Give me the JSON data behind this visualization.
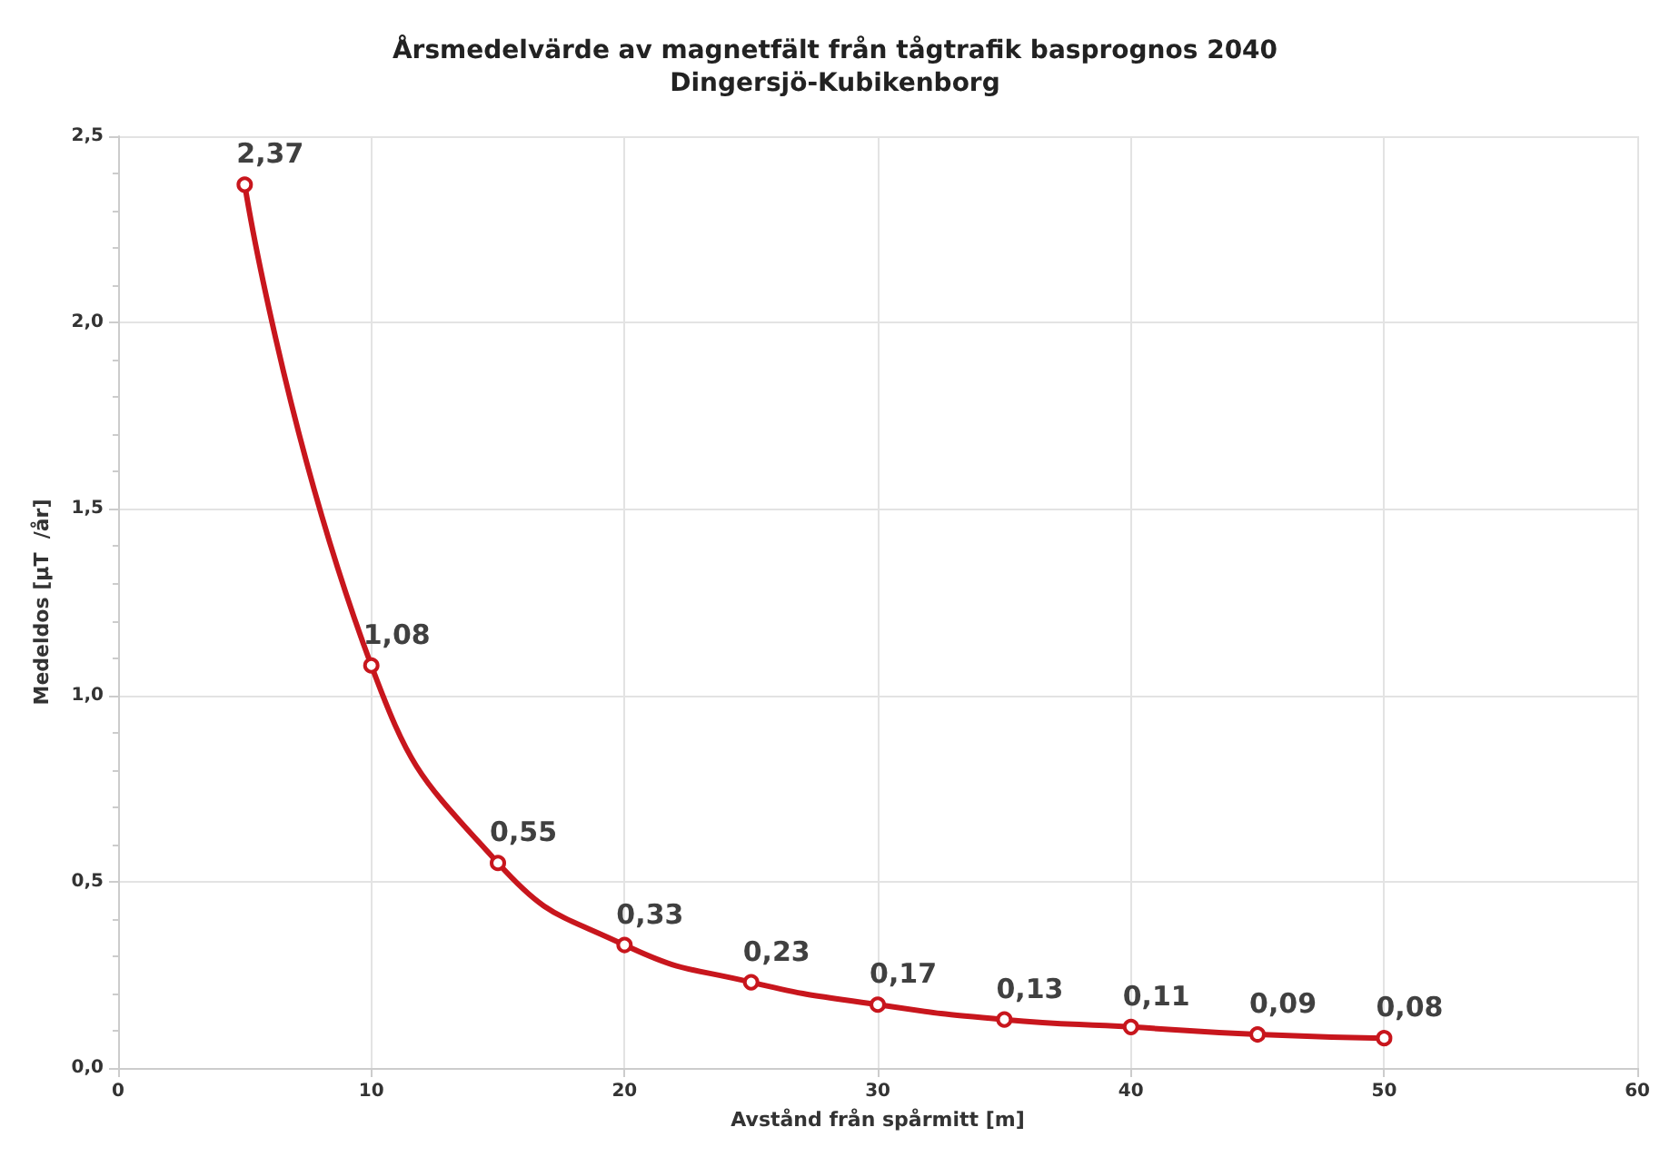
{
  "chart_data": {
    "type": "line",
    "title": "Årsmedelvärde av magnetfält från tågtrafik basprognos 2040",
    "subtitle": "Dingersjö-Kubikenborg",
    "xlabel": "Avstånd från spårmitt [m]",
    "ylabel": "Medeldos [µT  /år]",
    "x": [
      5,
      10,
      15,
      20,
      25,
      30,
      35,
      40,
      45,
      50
    ],
    "series": [
      {
        "color": "#c8161d",
        "values": [
          2.37,
          1.08,
          0.55,
          0.33,
          0.23,
          0.17,
          0.13,
          0.11,
          0.09,
          0.08
        ],
        "value_labels": [
          "2,37",
          "1,08",
          "0,55",
          "0,33",
          "0,23",
          "0,17",
          "0,13",
          "0,11",
          "0,09",
          "0,08"
        ]
      }
    ],
    "xlim": [
      0,
      60
    ],
    "xticks": [
      0,
      10,
      20,
      30,
      40,
      50,
      60
    ],
    "ylim": [
      0,
      2.5
    ],
    "yticks": [
      {
        "value": 0,
        "label": "0,0"
      },
      {
        "value": 0.5,
        "label": "0,5"
      },
      {
        "value": 1,
        "label": "1,0"
      },
      {
        "value": 1.5,
        "label": "1,5"
      },
      {
        "value": 2,
        "label": "2,0"
      },
      {
        "value": 2.5,
        "label": "2,5"
      }
    ],
    "grid": true,
    "marker": "circle",
    "line_style": "solid"
  }
}
